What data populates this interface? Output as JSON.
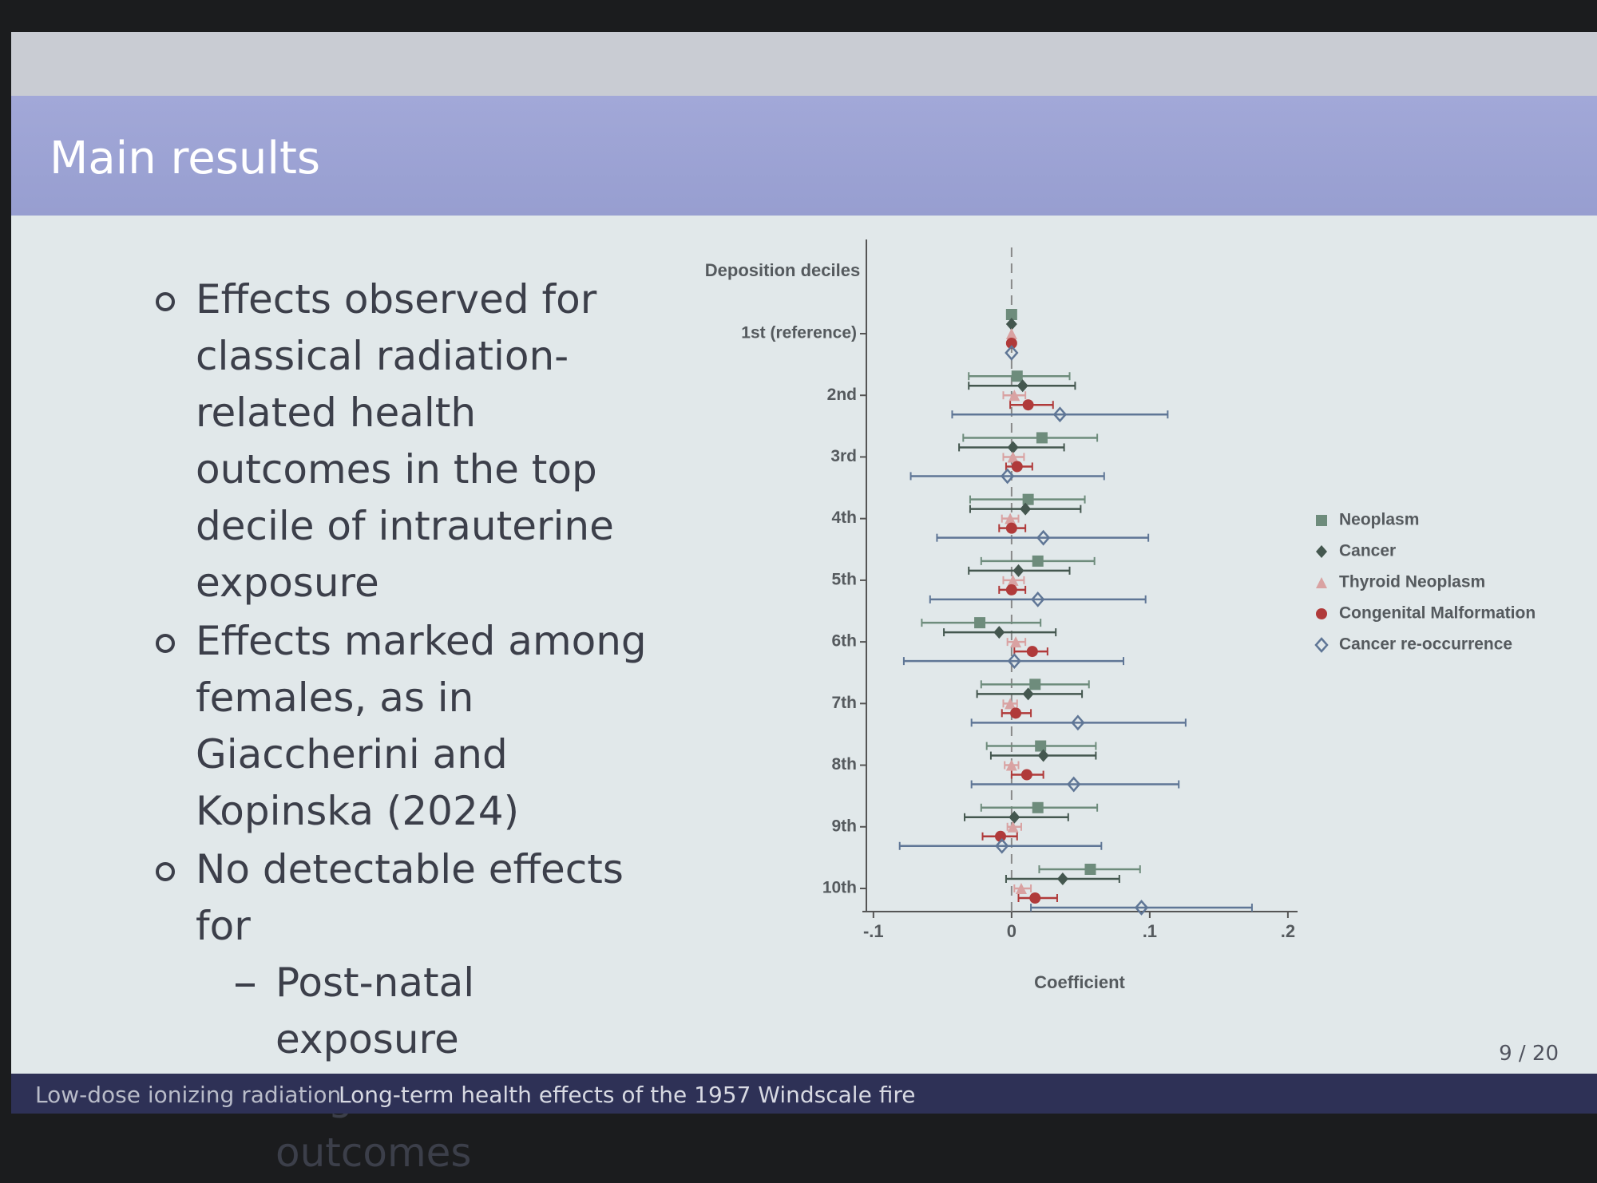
{
  "header": {
    "title": "Main results"
  },
  "bullets": [
    {
      "text": "Effects observed for classical radiation-related health outcomes in the top decile of intrauterine exposure"
    },
    {
      "text": "Effects marked among females, as in Giaccherini and Kopinska (2024)"
    },
    {
      "text": "No detectable effects for",
      "sub": [
        "Post-natal exposure",
        "Cognitive outcomes"
      ]
    }
  ],
  "chart_data": {
    "type": "coefplot",
    "y_title": "Deposition deciles",
    "x_label": "Coefficient",
    "categories": [
      "1st (reference)",
      "2nd",
      "3rd",
      "4th",
      "5th",
      "6th",
      "7th",
      "8th",
      "9th",
      "10th"
    ],
    "xlim": [
      -0.108,
      0.207
    ],
    "xticks": [
      {
        "value": -0.1,
        "label": "-.1"
      },
      0,
      {
        "value": 0.1,
        "label": ".1"
      },
      {
        "value": 0.2,
        "label": ".2"
      }
    ],
    "xline": 0,
    "legend": "right",
    "series": [
      {
        "name": "Neoplasm",
        "color": "#6e8c7c",
        "marker": "square",
        "values": [
          0,
          0.004,
          0.022,
          0.012,
          0.019,
          -0.023,
          0.017,
          0.021,
          0.019,
          0.057
        ],
        "lower": [
          null,
          -0.031,
          -0.035,
          -0.03,
          -0.022,
          -0.065,
          -0.022,
          -0.018,
          -0.022,
          0.02
        ],
        "upper": [
          null,
          0.042,
          0.062,
          0.053,
          0.06,
          0.021,
          0.056,
          0.061,
          0.062,
          0.093
        ]
      },
      {
        "name": "Cancer",
        "color": "#44574f",
        "marker": "diamond",
        "values": [
          0,
          0.008,
          0.001,
          0.01,
          0.005,
          -0.009,
          0.012,
          0.023,
          0.002,
          0.037
        ],
        "lower": [
          null,
          -0.031,
          -0.038,
          -0.03,
          -0.031,
          -0.049,
          -0.025,
          -0.015,
          -0.034,
          -0.004
        ],
        "upper": [
          null,
          0.046,
          0.038,
          0.05,
          0.042,
          0.032,
          0.051,
          0.061,
          0.041,
          0.078
        ]
      },
      {
        "name": "Thyroid Neoplasm",
        "color": "#d9a2a2",
        "marker": "triangle",
        "values": [
          0,
          0.002,
          0.001,
          -0.001,
          0.001,
          0.003,
          -0.001,
          0.0,
          0.001,
          0.007
        ],
        "lower": [
          null,
          -0.006,
          -0.006,
          -0.007,
          -0.006,
          -0.003,
          -0.006,
          -0.005,
          -0.003,
          0.002
        ],
        "upper": [
          null,
          0.01,
          0.009,
          0.005,
          0.009,
          0.01,
          0.004,
          0.005,
          0.007,
          0.014
        ]
      },
      {
        "name": "Congenital Malformation",
        "color": "#b03a3a",
        "marker": "circle",
        "values": [
          0,
          0.012,
          0.004,
          0.0,
          0.0,
          0.015,
          0.003,
          0.011,
          -0.008,
          0.017
        ],
        "lower": [
          null,
          -0.001,
          -0.004,
          -0.009,
          -0.009,
          0.002,
          -0.007,
          0.0,
          -0.021,
          0.005
        ],
        "upper": [
          null,
          0.03,
          0.015,
          0.01,
          0.01,
          0.026,
          0.014,
          0.023,
          0.004,
          0.033
        ]
      },
      {
        "name": "Cancer re-occurrence",
        "color": "#5f7696",
        "marker": "hollow-diamond",
        "values": [
          0,
          0.035,
          -0.003,
          0.023,
          0.019,
          0.002,
          0.048,
          0.045,
          -0.007,
          0.094
        ],
        "lower": [
          null,
          -0.043,
          -0.073,
          -0.054,
          -0.059,
          -0.078,
          -0.029,
          -0.029,
          -0.081,
          0.014
        ],
        "upper": [
          null,
          0.113,
          0.067,
          0.099,
          0.097,
          0.081,
          0.126,
          0.121,
          0.065,
          0.174
        ]
      }
    ]
  },
  "footer": {
    "short_title": "Low-dose ionizing radiation",
    "title": "Long-term health effects of the 1957 Windscale fire",
    "page": "9 / 20"
  }
}
